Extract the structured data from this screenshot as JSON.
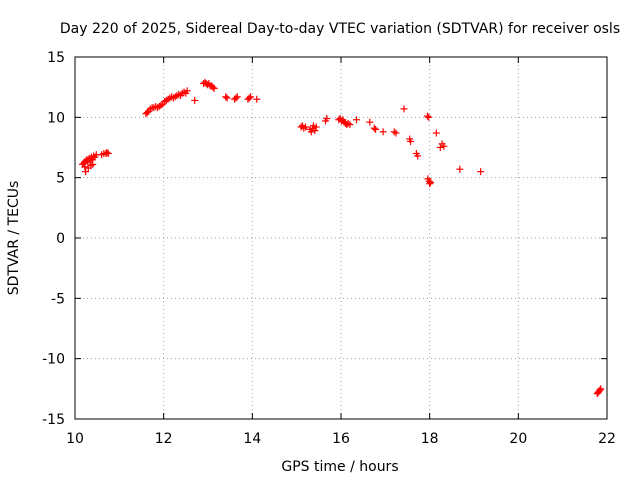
{
  "chart_data": {
    "type": "scatter",
    "title": "Day 220 of 2025, Sidereal Day-to-day VTEC variation (SDTVAR) for receiver osls",
    "xlabel": "GPS time / hours",
    "ylabel": "SDTVAR / TECUs",
    "xlim": [
      10,
      22
    ],
    "ylim": [
      -15,
      15
    ],
    "xticks": [
      10,
      12,
      14,
      16,
      18,
      20,
      22
    ],
    "yticks": [
      -15,
      -10,
      -5,
      0,
      5,
      10,
      15
    ],
    "xtick_labels": [
      "10",
      "12",
      "14",
      "16",
      "18",
      "20",
      "22"
    ],
    "ytick_labels": [
      "-15",
      "-10",
      "-5",
      "0",
      "5",
      "10",
      "15"
    ],
    "grid": true,
    "marker": "+",
    "color": "#ff0000",
    "series": [
      {
        "name": "SDTVAR",
        "x": [
          10.17,
          10.2,
          10.22,
          10.25,
          10.27,
          10.29,
          10.32,
          10.34,
          10.37,
          10.39,
          10.42,
          10.45,
          10.48,
          10.24,
          10.3,
          10.4,
          10.22,
          10.36,
          10.6,
          10.65,
          10.7,
          10.72,
          10.75,
          11.6,
          11.63,
          11.66,
          11.7,
          11.74,
          11.78,
          11.82,
          11.86,
          11.9,
          11.94,
          11.98,
          12.02,
          12.06,
          12.1,
          12.14,
          12.18,
          12.22,
          12.26,
          12.3,
          12.34,
          12.38,
          12.42,
          12.46,
          12.5,
          12.53,
          12.7,
          12.9,
          12.93,
          12.96,
          12.99,
          13.02,
          13.05,
          13.08,
          13.11,
          13.14,
          13.4,
          13.43,
          13.6,
          13.63,
          13.66,
          13.9,
          13.93,
          13.96,
          14.1,
          15.1,
          15.13,
          15.16,
          15.2,
          15.3,
          15.33,
          15.36,
          15.38,
          15.41,
          15.44,
          15.65,
          15.68,
          15.95,
          15.98,
          16.01,
          16.04,
          16.07,
          16.1,
          16.13,
          16.16,
          16.2,
          16.35,
          16.65,
          16.75,
          16.78,
          16.95,
          17.2,
          17.24,
          17.42,
          17.55,
          17.57,
          17.7,
          17.73,
          17.95,
          17.98,
          17.96,
          17.99,
          18.0,
          18.02,
          18.15,
          18.24,
          18.28,
          18.32,
          18.68,
          19.15,
          21.78,
          21.8,
          21.82,
          21.84,
          21.86
        ],
        "y": [
          6.1,
          6.2,
          6.3,
          6.4,
          6.5,
          6.3,
          6.6,
          6.4,
          6.7,
          6.5,
          6.8,
          6.7,
          6.9,
          5.5,
          5.8,
          6.1,
          5.9,
          6.0,
          6.9,
          7.0,
          7.0,
          7.1,
          7.0,
          10.3,
          10.4,
          10.5,
          10.7,
          10.8,
          10.8,
          10.9,
          10.8,
          10.9,
          11.0,
          11.1,
          11.3,
          11.4,
          11.5,
          11.6,
          11.7,
          11.6,
          11.7,
          11.8,
          11.9,
          11.8,
          12.0,
          12.1,
          12.0,
          12.2,
          11.4,
          12.8,
          12.9,
          12.8,
          12.7,
          12.8,
          12.6,
          12.6,
          12.5,
          12.4,
          11.7,
          11.6,
          11.5,
          11.6,
          11.7,
          11.5,
          11.6,
          11.7,
          11.5,
          9.2,
          9.3,
          9.1,
          9.2,
          9.0,
          8.8,
          9.1,
          9.3,
          8.9,
          9.2,
          9.7,
          9.9,
          9.8,
          9.9,
          9.7,
          9.8,
          9.6,
          9.5,
          9.4,
          9.5,
          9.4,
          9.8,
          9.6,
          9.1,
          9.0,
          8.8,
          8.8,
          8.7,
          10.7,
          8.2,
          8.0,
          7.0,
          6.8,
          10.1,
          10.0,
          4.9,
          4.7,
          4.5,
          4.6,
          8.7,
          7.5,
          7.8,
          7.6,
          5.7,
          5.5,
          -12.9,
          -12.8,
          -12.7,
          -12.6,
          -12.5
        ]
      }
    ]
  }
}
